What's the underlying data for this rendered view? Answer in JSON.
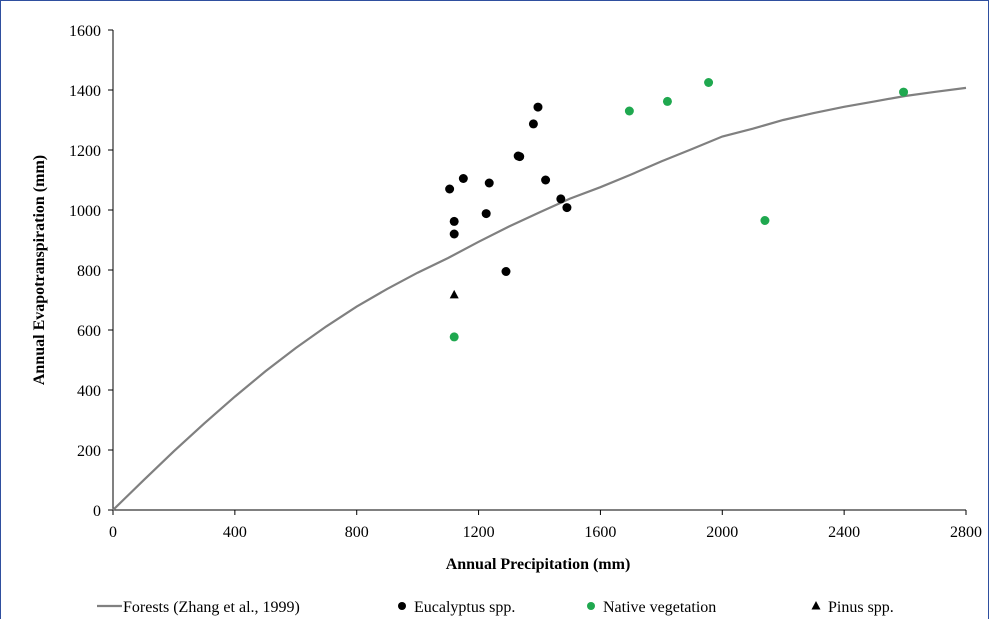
{
  "chart_data": {
    "type": "scatter",
    "title": "",
    "xlabel": "Annual Precipitation (mm)",
    "ylabel": "Annual Evapotranspiration (mm)",
    "xlim": [
      0,
      2800
    ],
    "ylim": [
      0,
      1600
    ],
    "xticks": [
      "0",
      "400",
      "800",
      "1200",
      "1600",
      "2000",
      "2400",
      "2800"
    ],
    "yticks": [
      "0",
      "200",
      "400",
      "600",
      "800",
      "1000",
      "1200",
      "1400",
      "1600"
    ],
    "grid": false,
    "legend_position": "bottom",
    "series": [
      {
        "name": "Forests (Zhang et al., 1999)",
        "kind": "line",
        "color": "#808080",
        "x": [
          0,
          100,
          200,
          300,
          400,
          500,
          600,
          700,
          800,
          900,
          1000,
          1100,
          1200,
          1300,
          1400,
          1500,
          1600,
          1700,
          1800,
          1900,
          2000,
          2100,
          2200,
          2300,
          2400,
          2500,
          2600,
          2700,
          2800
        ],
        "y": [
          0,
          99,
          196,
          289,
          378,
          462,
          540,
          612,
          678,
          737,
          791,
          840,
          894,
          945,
          992,
          1038,
          1076,
          1118,
          1162,
          1203,
          1245,
          1271,
          1300,
          1323,
          1344,
          1362,
          1380,
          1394,
          1407
        ]
      },
      {
        "name": "Eucalyptus spp.",
        "kind": "marker",
        "marker": "circle",
        "color": "#000000",
        "x": [
          1105,
          1120,
          1120,
          1150,
          1225,
          1235,
          1290,
          1330,
          1335,
          1380,
          1395,
          1420,
          1470,
          1490
        ],
        "y": [
          1070,
          920,
          962,
          1105,
          988,
          1090,
          795,
          1180,
          1178,
          1287,
          1343,
          1100,
          1037,
          1008
        ]
      },
      {
        "name": "Native vegetation",
        "kind": "marker",
        "marker": "circle",
        "color": "#1fa84f",
        "x": [
          1120,
          1695,
          1820,
          1955,
          2140,
          2595
        ],
        "y": [
          577,
          1330,
          1362,
          1425,
          965,
          1393
        ]
      },
      {
        "name": "Pinus spp.",
        "kind": "marker",
        "marker": "triangle",
        "color": "#000000",
        "x": [
          1120
        ],
        "y": [
          717
        ]
      }
    ]
  }
}
